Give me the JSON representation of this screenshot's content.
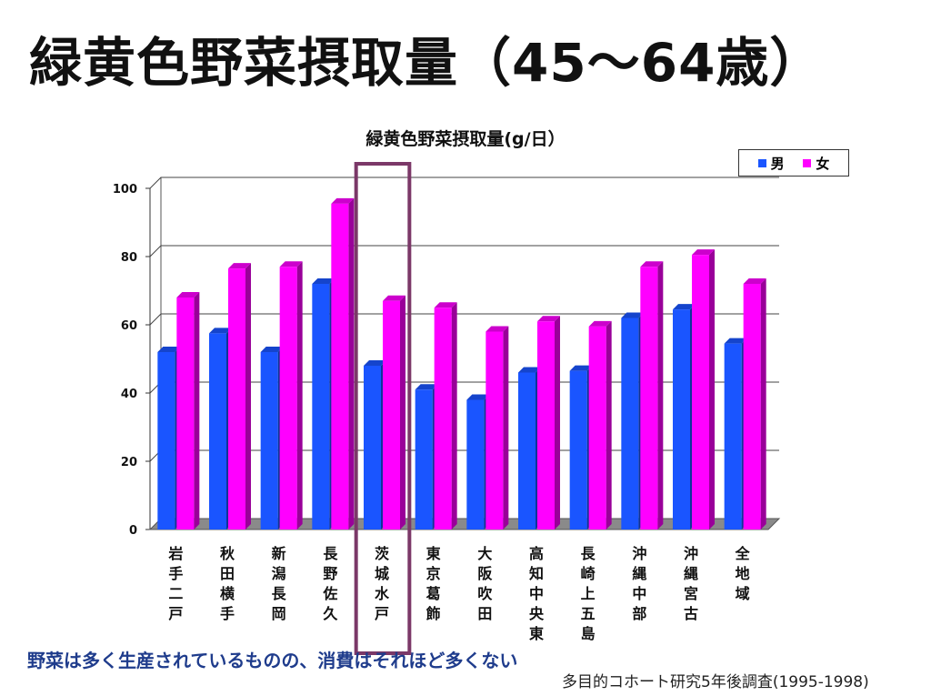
{
  "slide": {
    "title": "緑黄色野菜摂取量（45～64歳）",
    "note": "野菜は多く生産されているものの、消費はそれほど多くない",
    "source": "多目的コホート研究5年後調査(1995-1998)"
  },
  "colors": {
    "male": "#1a55ff",
    "female": "#ff00ff",
    "highlight": "#7b3868"
  },
  "chart_data": {
    "type": "bar",
    "title": "緑黄色野菜摂取量(g/日）",
    "categories": [
      "岩手二戸",
      "秋田横手",
      "新潟長岡",
      "長野佐久",
      "茨城水戸",
      "東京葛飾",
      "大阪吹田",
      "高知中央東",
      "長崎上五島",
      "沖縄中部",
      "沖縄宮古",
      "全地域"
    ],
    "series": [
      {
        "name": "男",
        "values": [
          52,
          57.5,
          52,
          72,
          48,
          41,
          38,
          46,
          46.5,
          62,
          64.5,
          54.5
        ]
      },
      {
        "name": "女",
        "values": [
          68,
          76.5,
          77,
          95.5,
          67,
          65,
          58,
          61,
          59.5,
          77,
          80.5,
          72
        ]
      }
    ],
    "ylim": [
      0,
      100
    ],
    "yticks": [
      "0",
      "20",
      "40",
      "60",
      "80",
      "100"
    ],
    "grid": true,
    "legend_position": "top-right",
    "highlighted_category": "茨城水戸"
  }
}
